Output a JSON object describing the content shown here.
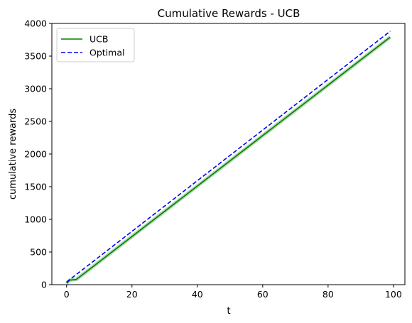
{
  "chart_data": {
    "type": "line",
    "title": "Cumulative Rewards - UCB",
    "xlabel": "t",
    "ylabel": "cumulative rewards",
    "xlim": [
      -4.5,
      103.5
    ],
    "ylim": [
      0,
      4000
    ],
    "xticks": [
      0,
      20,
      40,
      60,
      80,
      100
    ],
    "yticks": [
      0,
      500,
      1000,
      1500,
      2000,
      2500,
      3000,
      3500,
      4000
    ],
    "grid": false,
    "legend_position": "top-left",
    "series": [
      {
        "name": "UCB",
        "style": "solid",
        "color": "#008000",
        "band_color": "#7fbf7f",
        "x": [
          0,
          1,
          3,
          99
        ],
        "y": [
          20,
          70,
          80,
          3790
        ]
      },
      {
        "name": "Optimal",
        "style": "dashed",
        "color": "#0000ff",
        "x": [
          0,
          99
        ],
        "y": [
          40,
          3880
        ]
      }
    ]
  }
}
